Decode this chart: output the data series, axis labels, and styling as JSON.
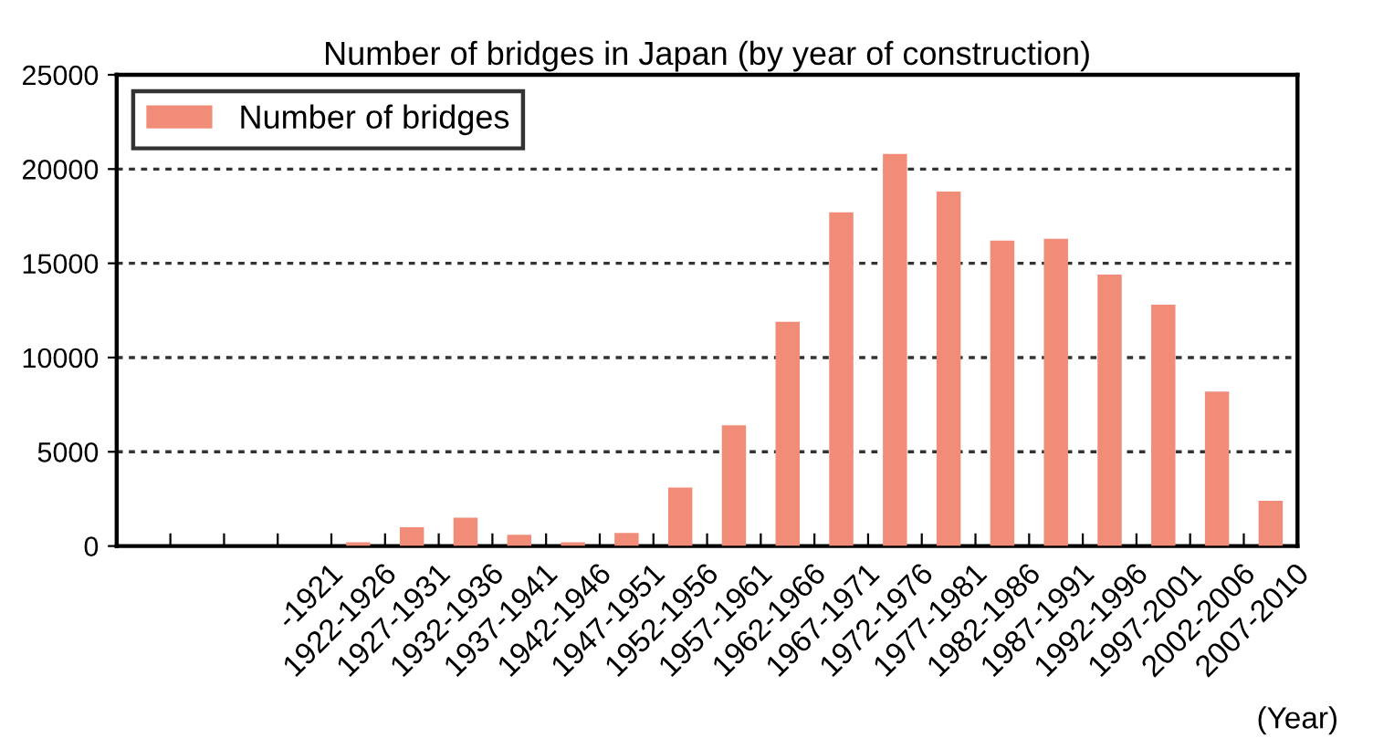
{
  "chart_data": {
    "type": "bar",
    "title": "Number of bridges in Japan (by year of construction)",
    "xlabel": "(Year)",
    "categories": [
      null,
      null,
      null,
      "-1921",
      "1922-1926",
      "1927-1931",
      "1932-1936",
      "1937-1941",
      "1942-1946",
      "1947-1951",
      "1952-1956",
      "1957-1961",
      "1962-1966",
      "1967-1971",
      "1972-1976",
      "1977-1981",
      "1982-1986",
      "1987-1991",
      "1992-1996",
      "1997-2001",
      "2002-2006",
      "2007-2010"
    ],
    "series": [
      {
        "name": "Number of bridges",
        "color": "#f08c78",
        "values": [
          null,
          null,
          null,
          null,
          200,
          1000,
          1500,
          600,
          200,
          700,
          3100,
          6400,
          11900,
          17700,
          20800,
          18800,
          16200,
          16300,
          14400,
          12800,
          8200,
          2400
        ]
      }
    ],
    "ylim": [
      0,
      25000
    ],
    "yticks": [
      0,
      5000,
      10000,
      15000,
      20000,
      25000
    ],
    "grid": "y",
    "legend": "top left"
  }
}
